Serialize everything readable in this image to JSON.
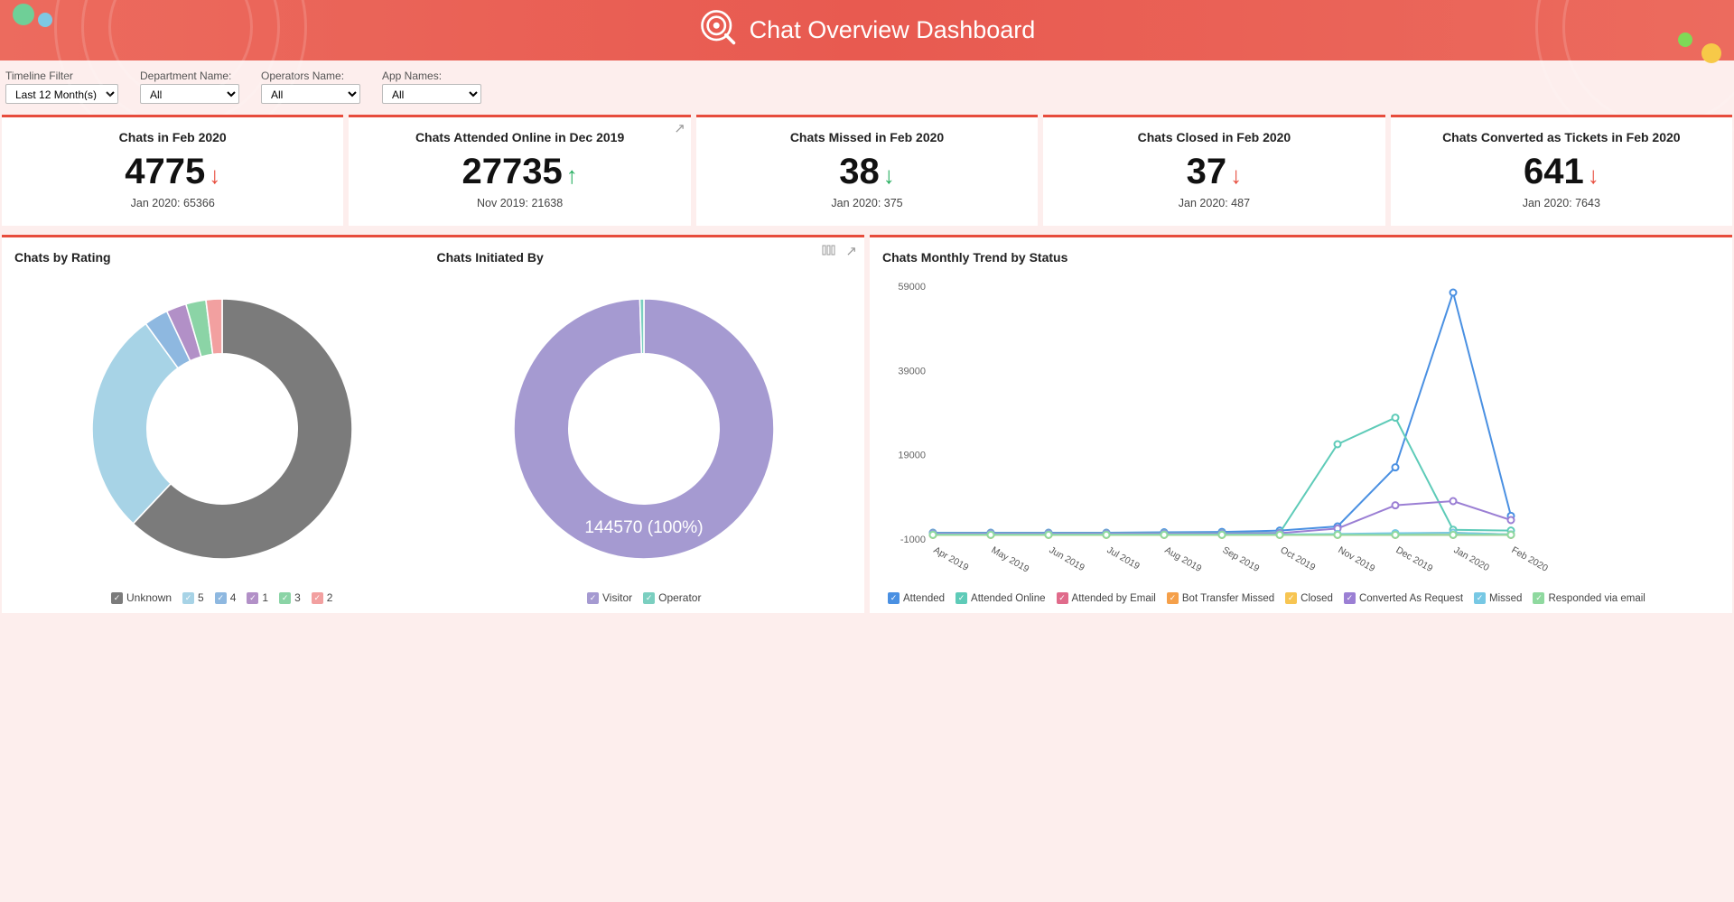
{
  "header": {
    "title": "Chat Overview Dashboard"
  },
  "filters": {
    "timeline": {
      "label": "Timeline Filter",
      "value": "Last 12 Month(s)"
    },
    "department": {
      "label": "Department Name:",
      "value": "All"
    },
    "operators": {
      "label": "Operators Name:",
      "value": "All"
    },
    "apps": {
      "label": "App Names:",
      "value": "All"
    }
  },
  "kpis": [
    {
      "title": "Chats in Feb 2020",
      "value": "4775",
      "trend": "down",
      "prev": "Jan 2020: 65366"
    },
    {
      "title": "Chats Attended Online in Dec 2019",
      "value": "27735",
      "trend": "up",
      "prev": "Nov 2019: 21638"
    },
    {
      "title": "Chats Missed in Feb 2020",
      "value": "38",
      "trend": "down_green",
      "prev": "Jan 2020: 375"
    },
    {
      "title": "Chats Closed in Feb 2020",
      "value": "37",
      "trend": "down",
      "prev": "Jan 2020: 487"
    },
    {
      "title": "Chats Converted as Tickets in Feb 2020",
      "value": "641",
      "trend": "down",
      "prev": "Jan 2020: 7643"
    }
  ],
  "donut_rating": {
    "title": "Chats by Rating",
    "slices": [
      {
        "label": "Unknown",
        "value": 62,
        "color": "#7b7b7b"
      },
      {
        "label": "5",
        "value": 28,
        "color": "#a7d3e6"
      },
      {
        "label": "4",
        "value": 3,
        "color": "#8eb8e0"
      },
      {
        "label": "1",
        "value": 2.5,
        "color": "#b290c7"
      },
      {
        "label": "3",
        "value": 2.5,
        "color": "#8bd4a6"
      },
      {
        "label": "2",
        "value": 2,
        "color": "#f2a0a0"
      }
    ]
  },
  "donut_initiated": {
    "title": "Chats Initiated By",
    "center_label": "144570 (100%)",
    "slices": [
      {
        "label": "Visitor",
        "value": 99.5,
        "color": "#a59ad1"
      },
      {
        "label": "Operator",
        "value": 0.5,
        "color": "#7bcfc0"
      }
    ]
  },
  "line_chart": {
    "title": "Chats Monthly Trend by Status",
    "y_ticks": [
      -1000,
      19000,
      39000,
      59000
    ],
    "y_min": -1000,
    "y_max": 59000,
    "x_labels": [
      "Apr 2019",
      "May 2019",
      "Jun 2019",
      "Jul 2019",
      "Aug 2019",
      "Sep 2019",
      "Oct 2019",
      "Nov 2019",
      "Dec 2019",
      "Jan 2020",
      "Feb 2020"
    ],
    "series": [
      {
        "name": "Attended",
        "color": "#4a90e2",
        "values": [
          500,
          500,
          500,
          500,
          600,
          700,
          1000,
          2000,
          16000,
          57500,
          4500
        ]
      },
      {
        "name": "Attended Online",
        "color": "#5ecbb8",
        "values": [
          400,
          400,
          400,
          400,
          400,
          400,
          500,
          21500,
          27800,
          1200,
          1000
        ]
      },
      {
        "name": "Attended by Email",
        "color": "#e06b8b",
        "values": [
          0,
          0,
          0,
          0,
          0,
          0,
          0,
          0,
          0,
          0,
          0
        ]
      },
      {
        "name": "Bot Transfer Missed",
        "color": "#f5a04a",
        "values": [
          0,
          0,
          0,
          0,
          0,
          0,
          0,
          0,
          0,
          0,
          0
        ]
      },
      {
        "name": "Closed",
        "color": "#f7c552",
        "values": [
          0,
          0,
          0,
          0,
          0,
          0,
          0,
          0,
          300,
          500,
          100
        ]
      },
      {
        "name": "Converted As Request",
        "color": "#9b7fd4",
        "values": [
          300,
          300,
          300,
          300,
          300,
          300,
          400,
          1500,
          7000,
          8000,
          3500
        ]
      },
      {
        "name": "Missed",
        "color": "#77c8e4",
        "values": [
          100,
          100,
          100,
          100,
          100,
          100,
          100,
          200,
          400,
          500,
          100
        ]
      },
      {
        "name": "Responded via email",
        "color": "#8fd99f",
        "values": [
          0,
          0,
          0,
          0,
          0,
          0,
          0,
          0,
          0,
          0,
          0
        ]
      }
    ]
  },
  "colors": {
    "accent": "#e74c3c",
    "header_bg": "#ec6b5e"
  }
}
